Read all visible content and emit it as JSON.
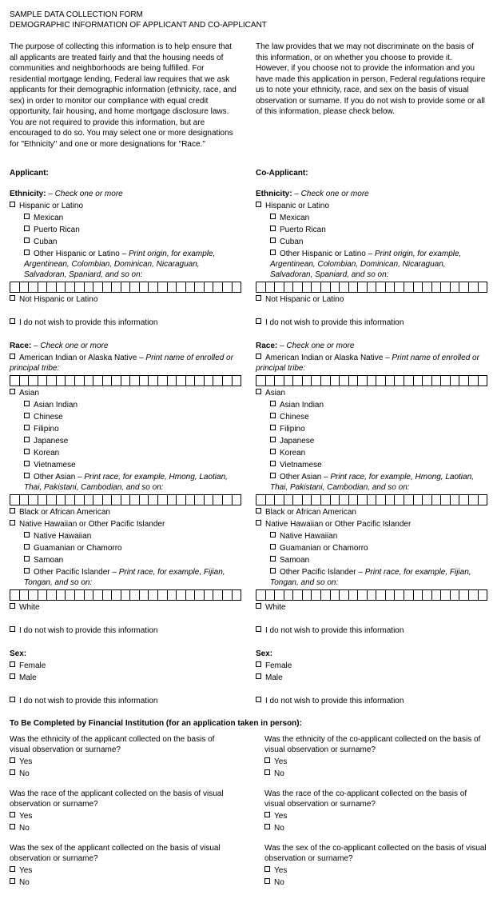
{
  "header": {
    "line1": "SAMPLE DATA COLLECTION FORM",
    "line2": "DEMOGRAPHIC INFORMATION OF APPLICANT AND CO-APPLICANT"
  },
  "intro": {
    "left": "The purpose of collecting this information is to help ensure that all applicants are treated fairly and that the housing needs of communities and neighborhoods are being fulfilled.  For residential mortgage lending, Federal law requires that we ask applicants for their demographic information (ethnicity, race, and sex) in order to monitor our compliance with equal credit opportunity, fair housing, and home mortgage disclosure laws.  You are not required to provide this information, but are encouraged to do so.  You may select one or more designations for \"Ethnicity\" and one or more designations for \"Race.\"",
    "right": "The law provides that we may not discriminate on the basis of this information, or on whether you choose to provide it.  However, if you choose not to provide the information and you have made this application in person, Federal regulations require us to note your ethnicity, race, and sex on the basis of visual observation or surname.  If you do not wish to provide some or all of this information, please check below."
  },
  "labels": {
    "applicant": "Applicant:",
    "coapplicant": "Co-Applicant:",
    "ethnicity": "Ethnicity:",
    "check_one_or_more": " – Check one or more",
    "hispanic": "Hispanic or Latino",
    "mexican": "Mexican",
    "puerto_rican": "Puerto Rican",
    "cuban": "Cuban",
    "other_hispanic": "Other Hispanic or Latino – ",
    "other_hispanic_instr": "Print origin, for example, Argentinean, Colombian, Dominican, Nicaraguan, Salvadoran, Spaniard, and so on:",
    "not_hispanic": "Not Hispanic or Latino",
    "no_info": "I do not wish to provide this information",
    "race": "Race:",
    "aian": "American Indian or Alaska Native – ",
    "aian_instr": "Print name of enrolled or principal tribe:",
    "asian": "Asian",
    "asian_indian": "Asian Indian",
    "chinese": "Chinese",
    "filipino": "Filipino",
    "japanese": "Japanese",
    "korean": "Korean",
    "vietnamese": "Vietnamese",
    "other_asian": "Other Asian – ",
    "other_asian_instr": "Print race, for example, Hmong, Laotian, Thai, Pakistani, Cambodian, and so on:",
    "black": "Black or African American",
    "nhpi": "Native Hawaiian or Other Pacific Islander",
    "native_hawaiian": "Native Hawaiian",
    "guamanian": "Guamanian or Chamorro",
    "samoan": "Samoan",
    "other_pi": "Other Pacific Islander – ",
    "other_pi_instr": "Print race, for example, Fijian, Tongan, and so on:",
    "white": "White",
    "sex": "Sex:",
    "female": "Female",
    "male": "Male"
  },
  "fi": {
    "heading": "To Be Completed by Financial Institution (for an application taken in person):",
    "q_eth_app": "Was the ethnicity of the applicant collected on the basis of visual observation or surname?",
    "q_race_app": "Was the race of the applicant collected on the basis of visual observation or surname?",
    "q_sex_app": "Was the sex of the applicant collected on the basis of visual observation or surname?",
    "q_eth_co": "Was the ethnicity of the co-applicant collected on the basis of visual observation or surname?",
    "q_race_co": "Was the race of the co-applicant collected on the basis of visual observation or surname?",
    "q_sex_co": "Was the sex of the co-applicant collected on the basis of visual observation or surname?",
    "yes": "Yes",
    "no": "No"
  },
  "style": {
    "box_count": 25,
    "text_color": "#000000",
    "bg_color": "#ffffff"
  }
}
